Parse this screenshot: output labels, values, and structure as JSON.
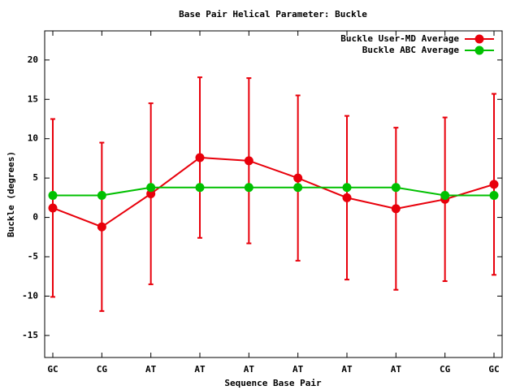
{
  "chart_data": {
    "type": "line",
    "title": "Base Pair Helical Parameter: Buckle",
    "x_label": "Sequence Base Pair",
    "y_label": "Buckle (degrees)",
    "categories": [
      "GC",
      "CG",
      "AT",
      "AT",
      "AT",
      "AT",
      "AT",
      "AT",
      "CG",
      "GC"
    ],
    "series": [
      {
        "name": "Buckle User-MD Average",
        "color": "#e8000b",
        "values": [
          1.2,
          -1.2,
          3.0,
          7.6,
          7.2,
          5.0,
          2.5,
          1.1,
          2.3,
          4.2
        ],
        "errors": [
          11.3,
          10.7,
          11.5,
          10.2,
          10.5,
          10.5,
          10.4,
          10.3,
          10.4,
          11.5
        ]
      },
      {
        "name": "Buckle ABC Average",
        "color": "#00c000",
        "values": [
          2.8,
          2.8,
          3.8,
          3.8,
          3.8,
          3.8,
          3.8,
          3.8,
          2.8,
          2.8
        ]
      }
    ],
    "ylim": [
      -17.8,
      23.7
    ],
    "yticks": [
      -15,
      -10,
      -5,
      0,
      5,
      10,
      15,
      20
    ],
    "grid": false,
    "legend": "top-right"
  }
}
